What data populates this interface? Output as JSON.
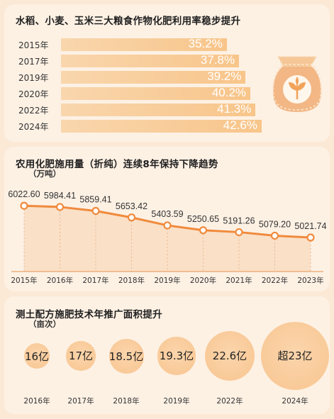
{
  "colors": {
    "background": "#fbe9d6",
    "panel": "#fdf1e4",
    "bar": "#f8c58a",
    "line": "#f08a3c",
    "circle": "#f8c590"
  },
  "icons": [
    "grain-bag-icon"
  ],
  "chart_data": [
    {
      "type": "bar",
      "orientation": "horizontal",
      "title": "水稻、小麦、玉米三大粮食作物化肥利用率稳步提升",
      "categories": [
        "2015年",
        "2017年",
        "2019年",
        "2020年",
        "2022年",
        "2024年"
      ],
      "values": [
        35.2,
        37.8,
        39.2,
        40.2,
        41.3,
        42.6
      ],
      "value_labels": [
        "35.2%",
        "37.8%",
        "39.2%",
        "40.2%",
        "41.3%",
        "42.6%"
      ],
      "unit": "%",
      "grid": false
    },
    {
      "type": "line",
      "title": "农用化肥施用量（折纯）连续8年保持下降趋势",
      "ylabel": "（万吨）",
      "x": [
        "2015年",
        "2016年",
        "2017年",
        "2018年",
        "2019年",
        "2020年",
        "2021年",
        "2022年",
        "2023年"
      ],
      "values": [
        6022.6,
        5984.41,
        5859.41,
        5653.42,
        5403.59,
        5250.65,
        5191.26,
        5079.2,
        5021.74
      ],
      "value_labels": [
        "6022.60",
        "5984.41",
        "5859.41",
        "5653.42",
        "5403.59",
        "5250.65",
        "5191.26",
        "5079.20",
        "5021.74"
      ],
      "grid": "vertical dashed",
      "area_fill": true
    },
    {
      "type": "bubble",
      "title": "测土配方施肥技术年推广面积提升",
      "ylabel": "（亩次）",
      "categories": [
        "2016年",
        "2017年",
        "2018年",
        "2019年",
        "2022年",
        "2024年"
      ],
      "values": [
        16,
        17,
        18.5,
        19.3,
        22.6,
        23
      ],
      "value_labels": [
        "16亿",
        "17亿",
        "18.5亿",
        "19.3亿",
        "22.6亿",
        "超23亿"
      ]
    }
  ]
}
